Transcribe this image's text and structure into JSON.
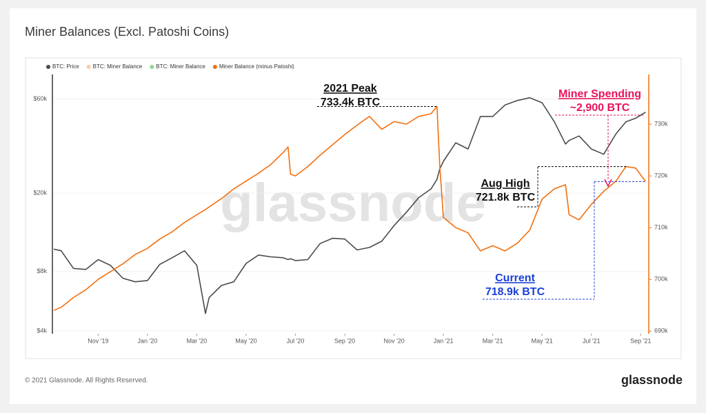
{
  "chart_data": {
    "type": "line",
    "title": "Miner Balances (Excl. Patoshi Coins)",
    "footer": "© 2021 Glassnode. All Rights Reserved.",
    "brand": "glassnode",
    "watermark": "glassnode",
    "x": [
      0.2,
      0.5,
      1,
      1.5,
      2,
      2.5,
      3,
      3.5,
      4,
      4.5,
      5,
      5.5,
      6,
      6.35,
      6.5,
      7,
      7.5,
      8,
      8.5,
      9,
      9.5,
      9.7,
      9.8,
      10,
      10.5,
      11,
      11.5,
      12,
      12.5,
      13,
      13.5,
      14,
      14.5,
      15,
      15.5,
      15.74,
      15.85,
      16,
      16.5,
      17,
      17.5,
      18,
      18.5,
      19,
      19.5,
      20,
      20.5,
      20.95,
      21.1,
      21.5,
      22,
      22.5,
      23,
      23.4,
      23.8,
      24.2
    ],
    "xlim": [
      0.2,
      24.3
    ],
    "xticks": [
      {
        "value": 2,
        "label": "Nov '19"
      },
      {
        "value": 4,
        "label": "Jan '20"
      },
      {
        "value": 6,
        "label": "Mar '20"
      },
      {
        "value": 8,
        "label": "May '20"
      },
      {
        "value": 10,
        "label": "Jul '20"
      },
      {
        "value": 12,
        "label": "Sep '20"
      },
      {
        "value": 14,
        "label": "Nov '20"
      },
      {
        "value": 16,
        "label": "Jan '21"
      },
      {
        "value": 18,
        "label": "Mar '21"
      },
      {
        "value": 20,
        "label": "May '21"
      },
      {
        "value": 22,
        "label": "Jul '21"
      },
      {
        "value": 24,
        "label": "Sep '21"
      }
    ],
    "ylim": [
      3870,
      80000
    ],
    "ylog": true,
    "yticks": [
      {
        "value": 4000,
        "label": "$4k"
      },
      {
        "value": 8000,
        "label": "$8k"
      },
      {
        "value": 20000,
        "label": "$20k"
      },
      {
        "value": 60000,
        "label": "$60k"
      }
    ],
    "y2lim": [
      689500,
      739600
    ],
    "y2ticks": [
      {
        "value": 690000,
        "label": "690k"
      },
      {
        "value": 700000,
        "label": "700k"
      },
      {
        "value": 710000,
        "label": "710k"
      },
      {
        "value": 720000,
        "label": "720k"
      },
      {
        "value": 730000,
        "label": "730k"
      }
    ],
    "grid": true,
    "series": [
      {
        "name": "BTC: Price",
        "color": "#4a4a4a",
        "values": [
          10400,
          10200,
          8300,
          8200,
          9200,
          8600,
          7400,
          7100,
          7200,
          8700,
          9400,
          10200,
          8600,
          4900,
          5900,
          6800,
          7100,
          8800,
          9700,
          9500,
          9400,
          9200,
          9300,
          9100,
          9200,
          11100,
          11800,
          11700,
          10300,
          10600,
          11400,
          13700,
          16000,
          19000,
          21000,
          23500,
          26500,
          29000,
          36000,
          33500,
          49000,
          49000,
          56000,
          59000,
          61000,
          57500,
          46000,
          35500,
          37000,
          39000,
          33500,
          31500,
          40000,
          46000,
          48000,
          51500
        ]
      },
      {
        "name": "Miner Balance (minus Patoshi)",
        "color": "#f26f0e",
        "axis": "y2",
        "values": [
          694000,
          694600,
          696500,
          698000,
          700000,
          701500,
          703000,
          704800,
          706000,
          707800,
          709200,
          711000,
          712500,
          713500,
          714000,
          715600,
          717500,
          719000,
          720500,
          722200,
          724500,
          725600,
          720300,
          720000,
          721800,
          724000,
          726000,
          728000,
          729800,
          731500,
          729000,
          730500,
          730000,
          731500,
          732000,
          733400,
          722000,
          712000,
          710000,
          709000,
          705500,
          706500,
          705500,
          707000,
          709500,
          715500,
          717500,
          718300,
          712500,
          711500,
          714500,
          717000,
          719000,
          721800,
          721500,
          718900
        ]
      }
    ],
    "hidden_legend": [
      {
        "name": "BTC: Miner Balance",
        "color": "#f8c9a4"
      },
      {
        "name": "BTC: Miner Balance",
        "color": "#8fd88f"
      }
    ],
    "annotations": {
      "peak": {
        "title": "2021 Peak",
        "label": "733.4k BTC",
        "value": 733400
      },
      "spending": {
        "title": "Miner Spending",
        "label": "~2,900 BTC",
        "value": 2900
      },
      "aug_high": {
        "title": "Aug High",
        "label": "721.8k BTC",
        "value": 721800
      },
      "current": {
        "title": "Current",
        "label": "718.9k BTC",
        "value": 718900
      }
    }
  }
}
